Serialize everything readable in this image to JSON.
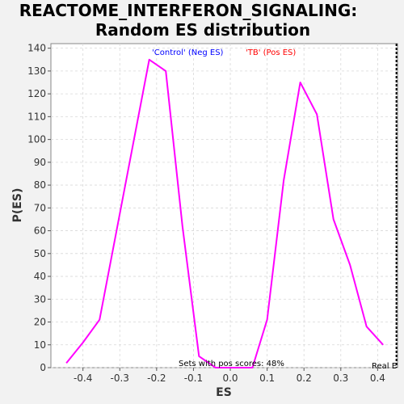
{
  "colors": {
    "background": "#f2f2f2",
    "plot_background": "#ffffff",
    "curve": "#ff00ff",
    "control_label": "#0000ff",
    "tb_label": "#ff0000",
    "real_es_marker": "#000000"
  },
  "chart_data": {
    "type": "line",
    "title": "REACTOME_INTERFERON_SIGNALING: Random ES distribution",
    "title_lines": [
      "REACTOME_INTERFERON_SIGNALING:",
      "Random ES distribution"
    ],
    "xlabel": "ES",
    "ylabel": "P(ES)",
    "xlim": [
      -0.487,
      0.454
    ],
    "ylim": [
      0,
      142
    ],
    "x_ticks": [
      -0.4,
      -0.3,
      -0.2,
      -0.1,
      0.0,
      0.1,
      0.2,
      0.3,
      0.4
    ],
    "x_tick_labels": [
      "-0.4",
      "-0.3",
      "-0.2",
      "-0.1",
      "0.0",
      "0.1",
      "0.2",
      "0.3",
      "0.4"
    ],
    "y_ticks": [
      0,
      10,
      20,
      30,
      40,
      50,
      60,
      70,
      80,
      90,
      100,
      110,
      120,
      130,
      140
    ],
    "y_tick_labels": [
      "0",
      "10",
      "20",
      "30",
      "40",
      "50",
      "60",
      "70",
      "80",
      "90",
      "100",
      "110",
      "120",
      "130",
      "140"
    ],
    "grid": true,
    "series": [
      {
        "x": [
          -0.445,
          -0.4,
          -0.355,
          -0.31,
          -0.265,
          -0.22,
          -0.175,
          -0.13,
          -0.085,
          -0.04,
          0.005,
          0.06,
          0.1,
          0.145,
          0.19,
          0.235,
          0.28,
          0.325,
          0.37,
          0.415
        ],
        "values": [
          2,
          11,
          21,
          59,
          97,
          135,
          130,
          62,
          5,
          0,
          0,
          0,
          21,
          82,
          125,
          111,
          65,
          45,
          18,
          10
        ]
      }
    ],
    "annotations": {
      "control_label": "'Control' (Neg ES)",
      "tb_label": "'TB' (Pos ES)",
      "pos_scores_note": "Sets with pos scores: 48%",
      "real_es_label": "Real E"
    },
    "real_es_x": 0.451
  }
}
